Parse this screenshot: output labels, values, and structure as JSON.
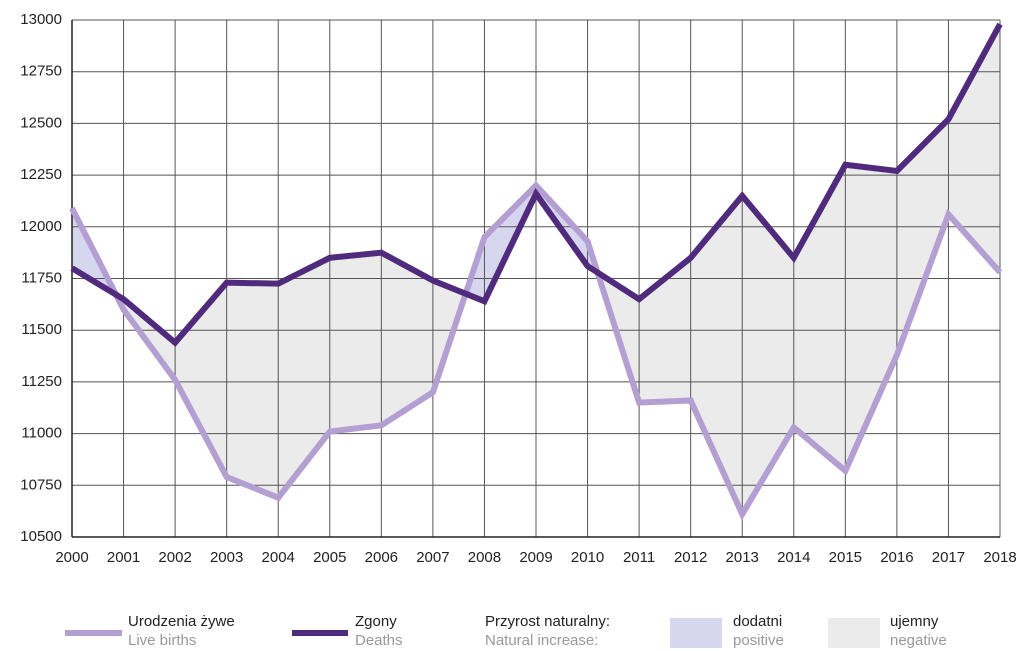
{
  "chart_data": {
    "type": "line",
    "categories": [
      "2000",
      "2001",
      "2002",
      "2003",
      "2004",
      "2005",
      "2006",
      "2007",
      "2008",
      "2009",
      "2010",
      "2011",
      "2012",
      "2013",
      "2014",
      "2015",
      "2016",
      "2017",
      "2018"
    ],
    "series": [
      {
        "name": "Urodzenia żywe",
        "subname": "Live births",
        "color": "#b39fd1",
        "values": [
          12090,
          11600,
          11260,
          10790,
          10690,
          11010,
          11040,
          11200,
          11950,
          12200,
          11930,
          11150,
          11160,
          10610,
          11030,
          10820,
          11380,
          12060,
          11780
        ]
      },
      {
        "name": "Zgony",
        "subname": "Deaths",
        "color": "#4f2a7d",
        "values": [
          11800,
          11650,
          11440,
          11730,
          11725,
          11850,
          11875,
          11740,
          11640,
          12160,
          11810,
          11650,
          11850,
          12150,
          11850,
          12300,
          12270,
          12520,
          12980
        ]
      }
    ],
    "fill_legend": {
      "title": "Przyrost naturalny:",
      "subtitle": "Natural increase:",
      "positive": {
        "label": "dodatni",
        "sublabel": "positive",
        "color": "#d6d6ef"
      },
      "negative": {
        "label": "ujemny",
        "sublabel": "negative",
        "color": "#ebebeb"
      }
    },
    "ylim": [
      10500,
      13000
    ],
    "yticks": [
      10500,
      10750,
      11000,
      11250,
      11500,
      11750,
      12000,
      12250,
      12500,
      12750,
      13000
    ],
    "grid": true
  }
}
